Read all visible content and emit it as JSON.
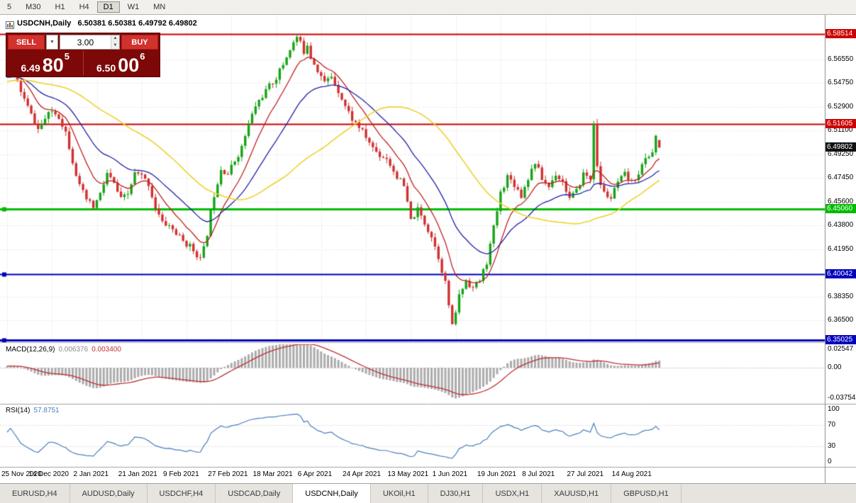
{
  "colors": {
    "up_candle": "#17A317",
    "down_candle": "#D13030",
    "ma_fast": "#C02020",
    "ma_mid": "#2222AA",
    "ma_slow": "#EED22F",
    "macd_hist": "#ABABAB",
    "macd_signal": "#C03030",
    "rsi_line": "#4A7EBE",
    "grid": "#DADADA",
    "current_price_bg": "#111111"
  },
  "icons": {
    "dropdown_arrow": "▼",
    "spinner_up": "▲",
    "spinner_down": "▼"
  },
  "toolbar": {
    "timeframes": [
      {
        "label": "5",
        "active": false
      },
      {
        "label": "M30",
        "active": false
      },
      {
        "label": "H1",
        "active": false
      },
      {
        "label": "H4",
        "active": false
      },
      {
        "label": "D1",
        "active": true
      },
      {
        "label": "W1",
        "active": false
      },
      {
        "label": "MN",
        "active": false
      }
    ]
  },
  "chart": {
    "title_symbol": "USDCNH,Daily",
    "title_quotes": "6.50381 6.50381 6.49792 6.49802"
  },
  "trade_panel": {
    "sell_label": "SELL",
    "buy_label": "BUY",
    "lot_value": "3.00",
    "sell_price": {
      "base": "6.49",
      "pips": "80",
      "pt": "5"
    },
    "buy_price": {
      "base": "6.50",
      "pips": "00",
      "pt": "6"
    }
  },
  "price_axis": {
    "ticks": [
      "6.56550",
      "6.54750",
      "6.52900",
      "6.51100",
      "6.49250",
      "6.47450",
      "6.45600",
      "6.43800",
      "6.41950",
      "6.38350",
      "6.36500"
    ],
    "grid_prices": [
      6.584,
      6.5655,
      6.5475,
      6.529,
      6.511,
      6.4925,
      6.4745,
      6.456,
      6.438,
      6.4195,
      6.401,
      6.3835,
      6.365
    ]
  },
  "levels": [
    {
      "price": 6.58514,
      "label": "6.58514",
      "color": "#CC0000",
      "width": 2,
      "marker": false
    },
    {
      "price": 6.51605,
      "label": "6.51605",
      "color": "#CC0000",
      "width": 2,
      "marker": false
    },
    {
      "price": 6.4506,
      "label": "6.45060",
      "color": "#00BB00",
      "width": 3,
      "marker": true
    },
    {
      "price": 6.40042,
      "label": "6.40042",
      "color": "#0000BB",
      "width": 2,
      "marker": true
    },
    {
      "price": 6.35025,
      "label": "6.35025",
      "color": "#0000BB",
      "width": 3,
      "marker": true
    }
  ],
  "current_price": {
    "label": "6.49802",
    "value": 6.49802
  },
  "macd": {
    "name": "MACD(12,26,9)",
    "value_main": "0.006376",
    "value_signal": "0.003400",
    "axis_max": {
      "label": "0.02547",
      "value": 0.02547
    },
    "axis_zero": {
      "label": "0.00",
      "value": 0
    },
    "axis_min": {
      "label": "-0.03754",
      "value": -0.03754
    }
  },
  "rsi": {
    "name": "RSI(14)",
    "value": "57.8751",
    "axis": [
      {
        "label": "100",
        "value": 100
      },
      {
        "label": "70",
        "value": 70
      },
      {
        "label": "30",
        "value": 30
      },
      {
        "label": "0",
        "value": 0
      }
    ],
    "levels": [
      70,
      30
    ]
  },
  "date_axis": [
    {
      "label": "25 Nov 2020",
      "day": 0
    },
    {
      "label": "14 Dec 2020",
      "day": 13
    },
    {
      "label": "2 Jan 2021",
      "day": 26
    },
    {
      "label": "21 Jan 2021",
      "day": 39
    },
    {
      "label": "9 Feb 2021",
      "day": 52
    },
    {
      "label": "27 Feb 2021",
      "day": 65
    },
    {
      "label": "18 Mar 2021",
      "day": 78
    },
    {
      "label": "6 Apr 2021",
      "day": 91
    },
    {
      "label": "24 Apr 2021",
      "day": 104
    },
    {
      "label": "13 May 2021",
      "day": 117
    },
    {
      "label": "1 Jun 2021",
      "day": 130
    },
    {
      "label": "19 Jun 2021",
      "day": 143
    },
    {
      "label": "8 Jul 2021",
      "day": 156
    },
    {
      "label": "27 Jul 2021",
      "day": 169
    },
    {
      "label": "14 Aug 2021",
      "day": 182
    }
  ],
  "tabs": [
    {
      "label": "EURUSD,H4",
      "active": false
    },
    {
      "label": "AUDUSD,Daily",
      "active": false
    },
    {
      "label": "USDCHF,H4",
      "active": false
    },
    {
      "label": "USDCAD,Daily",
      "active": false
    },
    {
      "label": "USDCNH,Daily",
      "active": true
    },
    {
      "label": "UKOil,H1",
      "active": false
    },
    {
      "label": "DJ30,H1",
      "active": false
    },
    {
      "label": "USDX,H1",
      "active": false
    },
    {
      "label": "XAUUSD,H1",
      "active": false
    },
    {
      "label": "GBPUSD,H1",
      "active": false
    }
  ],
  "chart_data": {
    "type": "candlestick",
    "symbol": "USDCNH",
    "timeframe": "Daily",
    "ohlc_current": {
      "open": 6.50381,
      "high": 6.50381,
      "low": 6.49792,
      "close": 6.49802
    },
    "price_range": {
      "min": 6.35,
      "max": 6.5995
    },
    "days_visible": 190,
    "seed": 11,
    "noise": 0.0024,
    "wick": 0.0034,
    "anchors": [
      [
        -60,
        6.52
      ],
      [
        -40,
        6.545
      ],
      [
        -20,
        6.552
      ],
      [
        -5,
        6.553
      ],
      [
        0,
        6.556
      ],
      [
        1,
        6.558
      ],
      [
        3,
        6.548
      ],
      [
        5,
        6.535
      ],
      [
        7,
        6.523
      ],
      [
        9,
        6.512
      ],
      [
        11,
        6.52
      ],
      [
        13,
        6.526
      ],
      [
        15,
        6.522
      ],
      [
        17,
        6.51
      ],
      [
        19,
        6.488
      ],
      [
        21,
        6.468
      ],
      [
        23,
        6.458
      ],
      [
        25,
        6.452
      ],
      [
        27,
        6.462
      ],
      [
        29,
        6.478
      ],
      [
        31,
        6.47
      ],
      [
        33,
        6.458
      ],
      [
        35,
        6.462
      ],
      [
        37,
        6.478
      ],
      [
        39,
        6.476
      ],
      [
        41,
        6.47
      ],
      [
        43,
        6.452
      ],
      [
        45,
        6.44
      ],
      [
        47,
        6.438
      ],
      [
        49,
        6.432
      ],
      [
        51,
        6.426
      ],
      [
        53,
        6.422
      ],
      [
        55,
        6.416
      ],
      [
        56,
        6.412
      ],
      [
        57,
        6.42
      ],
      [
        58,
        6.432
      ],
      [
        59,
        6.448
      ],
      [
        60,
        6.462
      ],
      [
        62,
        6.482
      ],
      [
        64,
        6.478
      ],
      [
        66,
        6.488
      ],
      [
        68,
        6.498
      ],
      [
        70,
        6.516
      ],
      [
        72,
        6.53
      ],
      [
        74,
        6.538
      ],
      [
        76,
        6.545
      ],
      [
        78,
        6.552
      ],
      [
        80,
        6.562
      ],
      [
        82,
        6.574
      ],
      [
        84,
        6.583
      ],
      [
        85,
        6.578
      ],
      [
        86,
        6.572
      ],
      [
        87,
        6.578
      ],
      [
        88,
        6.568
      ],
      [
        90,
        6.558
      ],
      [
        92,
        6.548
      ],
      [
        94,
        6.553
      ],
      [
        96,
        6.542
      ],
      [
        98,
        6.53
      ],
      [
        100,
        6.52
      ],
      [
        102,
        6.514
      ],
      [
        104,
        6.506
      ],
      [
        106,
        6.498
      ],
      [
        108,
        6.492
      ],
      [
        110,
        6.49
      ],
      [
        112,
        6.48
      ],
      [
        114,
        6.472
      ],
      [
        115,
        6.468
      ],
      [
        117,
        6.442
      ],
      [
        119,
        6.45
      ],
      [
        121,
        6.44
      ],
      [
        123,
        6.43
      ],
      [
        125,
        6.414
      ],
      [
        127,
        6.394
      ],
      [
        129,
        6.36
      ],
      [
        130,
        6.372
      ],
      [
        131,
        6.384
      ],
      [
        133,
        6.396
      ],
      [
        135,
        6.39
      ],
      [
        137,
        6.396
      ],
      [
        139,
        6.41
      ],
      [
        141,
        6.436
      ],
      [
        143,
        6.463
      ],
      [
        145,
        6.476
      ],
      [
        147,
        6.47
      ],
      [
        149,
        6.461
      ],
      [
        151,
        6.475
      ],
      [
        153,
        6.487
      ],
      [
        155,
        6.474
      ],
      [
        157,
        6.468
      ],
      [
        159,
        6.478
      ],
      [
        161,
        6.472
      ],
      [
        163,
        6.459
      ],
      [
        165,
        6.464
      ],
      [
        167,
        6.478
      ],
      [
        169,
        6.474
      ],
      [
        170,
        6.518
      ],
      [
        171,
        6.482
      ],
      [
        172,
        6.47
      ],
      [
        173,
        6.463
      ],
      [
        175,
        6.459
      ],
      [
        177,
        6.471
      ],
      [
        179,
        6.477
      ],
      [
        181,
        6.471
      ],
      [
        183,
        6.479
      ],
      [
        185,
        6.489
      ],
      [
        187,
        6.495
      ],
      [
        188,
        6.507
      ],
      [
        189,
        6.499
      ]
    ],
    "moving_averages": [
      {
        "period": 10,
        "method": "ema",
        "color_key": "ma_fast",
        "width": 1.3
      },
      {
        "period": 25,
        "method": "ema",
        "color_key": "ma_mid",
        "width": 1.3
      },
      {
        "period": 50,
        "method": "sma",
        "color_key": "ma_slow",
        "width": 1.6
      }
    ],
    "macd_params": [
      12,
      26,
      9
    ],
    "rsi_period": 14
  }
}
